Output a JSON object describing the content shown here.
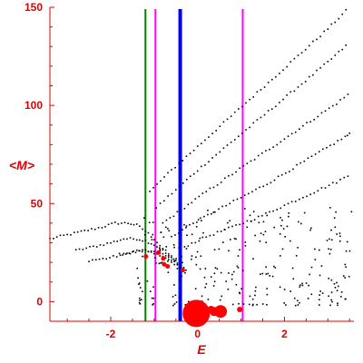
{
  "chart_data": {
    "type": "scatter",
    "xlabel": "E",
    "ylabel": "<M>",
    "xlim": [
      -3.4,
      3.6
    ],
    "ylim": [
      -10,
      150
    ],
    "x_ticks": [
      -2,
      0,
      2
    ],
    "y_ticks": [
      0,
      50,
      100,
      150
    ],
    "grid": false,
    "colors": {
      "axis": "#e00000",
      "points": "#000000",
      "highlight": "#ff0000",
      "green_line": "#008000",
      "magenta_line": "#ff00ff",
      "blue_line": "#0000ff"
    },
    "vertical_lines": [
      {
        "x": -1.2,
        "color": "green"
      },
      {
        "x": -0.97,
        "color": "magenta"
      },
      {
        "x": -0.4,
        "color": "blue"
      },
      {
        "x": 1.04,
        "color": "magenta"
      }
    ],
    "highlight_points": [
      {
        "x": -0.03,
        "y": -6,
        "size": 3
      },
      {
        "x": 0.53,
        "y": -5,
        "size": 1.4
      },
      {
        "x": 0.38,
        "y": -5,
        "size": 1
      },
      {
        "x": 0.31,
        "y": -4,
        "size": 0.8
      },
      {
        "x": 0.97,
        "y": -4,
        "size": 0.6
      },
      {
        "x": -0.79,
        "y": 22,
        "size": 0.5
      },
      {
        "x": -0.77,
        "y": 19,
        "size": 0.5
      },
      {
        "x": -0.9,
        "y": 25,
        "size": 0.5
      },
      {
        "x": -0.69,
        "y": 18,
        "size": 0.5
      },
      {
        "x": -0.34,
        "y": 16,
        "size": 0.5
      },
      {
        "x": -1.19,
        "y": 23,
        "size": 0.5
      }
    ],
    "bands": [
      {
        "x": [
          -3.4,
          -3.0,
          -2.6,
          -2.2,
          -1.9,
          -1.6,
          -1.4,
          -1.2,
          -1.0,
          -0.8,
          -0.6,
          -0.45
        ],
        "y": [
          32,
          34,
          36,
          38,
          40,
          40,
          39,
          36,
          32,
          27,
          23,
          20
        ]
      },
      {
        "x": [
          -2.8,
          -2.4,
          -2.0,
          -1.7,
          -1.4,
          -1.2,
          -1.0,
          -0.8,
          -0.6,
          -0.4
        ],
        "y": [
          26,
          28,
          30,
          32,
          32,
          31,
          29,
          26,
          22,
          18
        ]
      },
      {
        "x": [
          -2.5,
          -2.1,
          -1.7,
          -1.4,
          -1.2,
          -1.0,
          -0.8,
          -0.6,
          -0.4
        ],
        "y": [
          21,
          22,
          24,
          26,
          26,
          25,
          23,
          20,
          16
        ]
      },
      {
        "x": [
          -1.8,
          -1.5,
          -1.2,
          -1.0,
          -0.8,
          -0.6,
          -0.4,
          -0.2
        ],
        "y": [
          24,
          25,
          26,
          25,
          24,
          21,
          18,
          15
        ]
      },
      {
        "x": [
          -1.1,
          -0.6,
          0.0,
          0.6,
          1.2,
          1.8,
          2.4,
          3.0,
          3.5
        ],
        "y": [
          56,
          67,
          79,
          91,
          103,
          115,
          127,
          139,
          150
        ]
      },
      {
        "x": [
          -0.95,
          -0.5,
          0.0,
          0.6,
          1.2,
          1.8,
          2.4,
          3.0,
          3.5
        ],
        "y": [
          48,
          57,
          67,
          78,
          89,
          100,
          111,
          122,
          132
        ]
      },
      {
        "x": [
          -0.8,
          -0.3,
          0.2,
          0.8,
          1.4,
          2.0,
          2.6,
          3.2,
          3.55
        ],
        "y": [
          40,
          48,
          56,
          65,
          74,
          83,
          92,
          101,
          107
        ]
      },
      {
        "x": [
          -0.6,
          -0.1,
          0.4,
          1.0,
          1.6,
          2.2,
          2.8,
          3.4,
          3.55
        ],
        "y": [
          33,
          40,
          46,
          53,
          60,
          68,
          76,
          84,
          86
        ]
      },
      {
        "x": [
          -0.3,
          0.2,
          0.8,
          1.4,
          2.0,
          2.6,
          3.2,
          3.55
        ],
        "y": [
          28,
          33,
          38,
          43,
          49,
          55,
          61,
          65
        ]
      }
    ],
    "scatter_region": {
      "x": [
        -1.4,
        3.6
      ],
      "y": [
        -2,
        48
      ],
      "count": 260
    }
  }
}
